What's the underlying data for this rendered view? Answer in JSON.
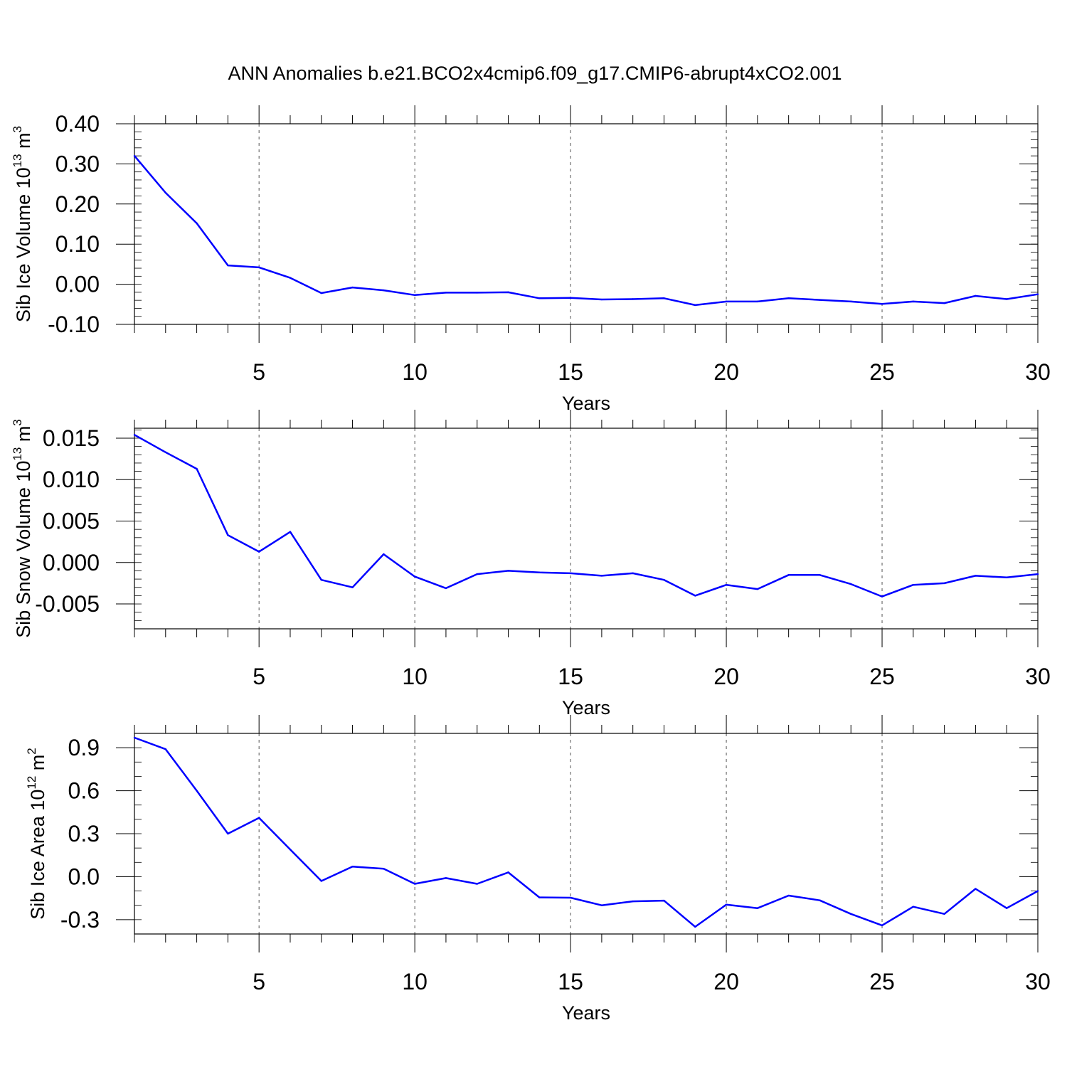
{
  "chart_data": {
    "title": "ANN Anomalies b.e21.BCO2x4cmip6.f09_g17.CMIP6-abrupt4xCO2.001",
    "line_color": "#0000ff",
    "grid_color": "#000000",
    "panels": [
      {
        "type": "line",
        "ylabel_main": "Sib Ice Volume 10",
        "ylabel_exp": "13",
        "ylabel_unit": " m",
        "ylabel_unit_exp": "3",
        "xlabel": "Years",
        "xlim": [
          1,
          30
        ],
        "ylim": [
          -0.1,
          0.4
        ],
        "yticks": [
          -0.1,
          0.0,
          0.1,
          0.2,
          0.3,
          0.4
        ],
        "ytick_labels": [
          "-0.10",
          "0.00",
          "0.10",
          "0.20",
          "0.30",
          "0.40"
        ],
        "yminor_step": 0.02,
        "xticks": [
          5,
          10,
          15,
          20,
          25,
          30
        ],
        "xtick_labels": [
          "5",
          "10",
          "15",
          "20",
          "25",
          "30"
        ],
        "gridlines_x": [
          5,
          10,
          15,
          20,
          25
        ],
        "x": [
          1,
          2,
          3,
          4,
          5,
          6,
          7,
          8,
          9,
          10,
          11,
          12,
          13,
          14,
          15,
          16,
          17,
          18,
          19,
          20,
          21,
          22,
          23,
          24,
          25,
          26,
          27,
          28,
          29,
          30
        ],
        "values": [
          0.32,
          0.228,
          0.152,
          0.047,
          0.042,
          0.016,
          -0.022,
          -0.008,
          -0.015,
          -0.027,
          -0.021,
          -0.021,
          -0.02,
          -0.035,
          -0.034,
          -0.038,
          -0.037,
          -0.035,
          -0.052,
          -0.043,
          -0.043,
          -0.035,
          -0.039,
          -0.043,
          -0.049,
          -0.043,
          -0.047,
          -0.029,
          -0.037,
          -0.025
        ]
      },
      {
        "type": "line",
        "ylabel_main": "Sib Snow Volume 10",
        "ylabel_exp": "13",
        "ylabel_unit": " m",
        "ylabel_unit_exp": "3",
        "xlabel": "Years",
        "xlim": [
          1,
          30
        ],
        "ylim": [
          -0.008,
          0.0162
        ],
        "yticks": [
          -0.005,
          0.0,
          0.005,
          0.01,
          0.015
        ],
        "ytick_labels": [
          "-0.005",
          "0.000",
          "0.005",
          "0.010",
          "0.015"
        ],
        "yminor_step": 0.001,
        "xticks": [
          5,
          10,
          15,
          20,
          25,
          30
        ],
        "xtick_labels": [
          "5",
          "10",
          "15",
          "20",
          "25",
          "30"
        ],
        "gridlines_x": [
          5,
          10,
          15,
          20,
          25
        ],
        "x": [
          1,
          2,
          3,
          4,
          5,
          6,
          7,
          8,
          9,
          10,
          11,
          12,
          13,
          14,
          15,
          16,
          17,
          18,
          19,
          20,
          21,
          22,
          23,
          24,
          25,
          26,
          27,
          28,
          29,
          30
        ],
        "values": [
          0.0154,
          0.0133,
          0.0113,
          0.0033,
          0.0013,
          0.0037,
          -0.0021,
          -0.003,
          0.001,
          -0.0017,
          -0.0031,
          -0.0014,
          -0.001,
          -0.0012,
          -0.0013,
          -0.0016,
          -0.0013,
          -0.0021,
          -0.004,
          -0.0027,
          -0.0032,
          -0.0015,
          -0.0015,
          -0.0026,
          -0.0041,
          -0.0027,
          -0.0025,
          -0.0016,
          -0.0018,
          -0.0014
        ]
      },
      {
        "type": "line",
        "ylabel_main": "Sib Ice Area 10",
        "ylabel_exp": "12",
        "ylabel_unit": " m",
        "ylabel_unit_exp": "2",
        "xlabel": "Years",
        "xlim": [
          1,
          30
        ],
        "ylim": [
          -0.4,
          1.0
        ],
        "yticks": [
          -0.3,
          0.0,
          0.3,
          0.6,
          0.9
        ],
        "ytick_labels": [
          "-0.3",
          "0.0",
          "0.3",
          "0.6",
          "0.9"
        ],
        "yminor_step": 0.1,
        "xticks": [
          5,
          10,
          15,
          20,
          25,
          30
        ],
        "xtick_labels": [
          "5",
          "10",
          "15",
          "20",
          "25",
          "30"
        ],
        "gridlines_x": [
          5,
          10,
          15,
          20,
          25
        ],
        "x": [
          1,
          2,
          3,
          4,
          5,
          6,
          7,
          8,
          9,
          10,
          11,
          12,
          13,
          14,
          15,
          16,
          17,
          18,
          19,
          20,
          21,
          22,
          23,
          24,
          25,
          26,
          27,
          28,
          29,
          30
        ],
        "values": [
          0.97,
          0.89,
          0.6,
          0.3,
          0.41,
          0.19,
          -0.03,
          0.07,
          0.055,
          -0.05,
          -0.01,
          -0.05,
          0.03,
          -0.145,
          -0.147,
          -0.2,
          -0.172,
          -0.167,
          -0.35,
          -0.195,
          -0.22,
          -0.132,
          -0.165,
          -0.26,
          -0.34,
          -0.21,
          -0.26,
          -0.085,
          -0.22,
          -0.1
        ]
      }
    ]
  }
}
